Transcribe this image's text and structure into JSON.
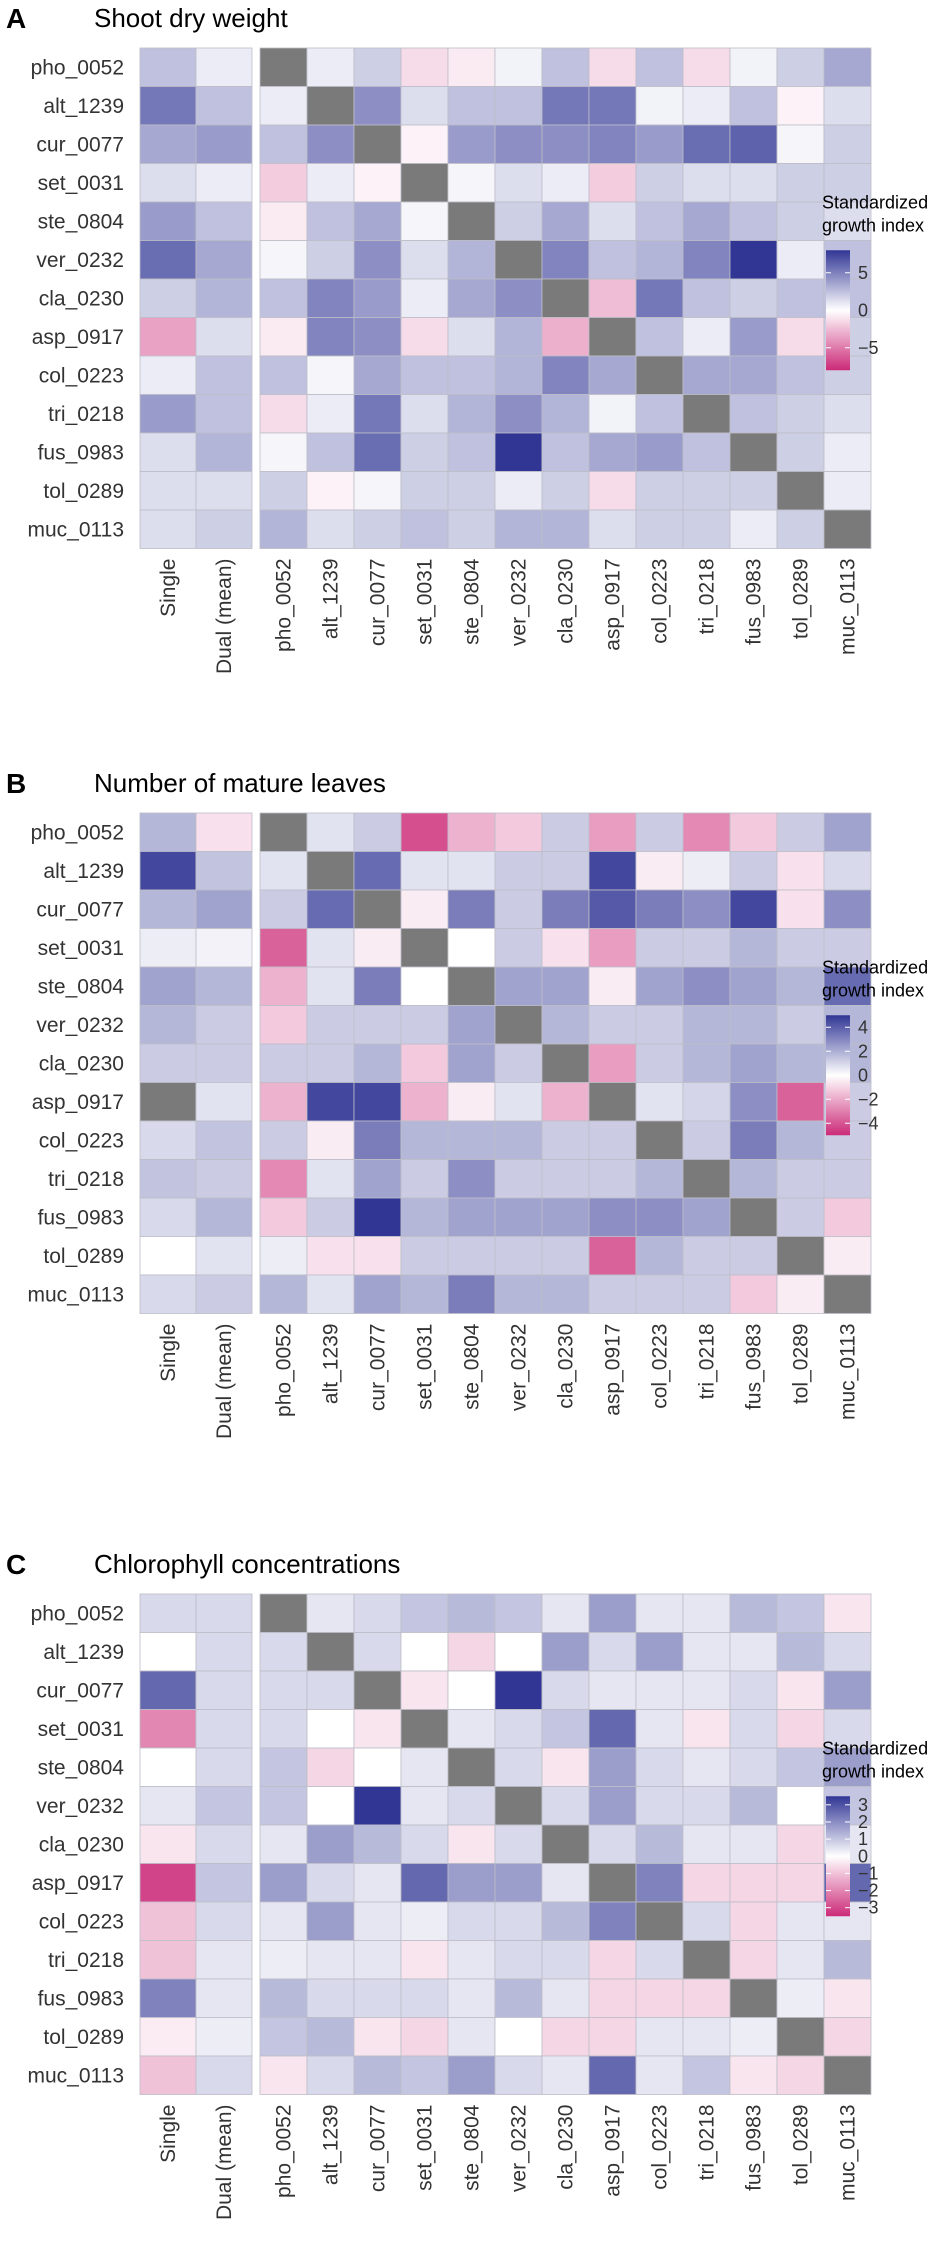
{
  "chart_data": [
    {
      "type": "heatmap",
      "panel": "A",
      "title": "Shoot dry weight",
      "legend": {
        "title_line1": "Standardized",
        "title_line2": "growth index",
        "ticks": [
          5,
          0,
          -5
        ],
        "tick_labels": [
          "5",
          "0",
          "−5"
        ],
        "range": [
          -8,
          8
        ]
      },
      "rows": [
        "pho_0052",
        "alt_1239",
        "cur_0077",
        "set_0031",
        "ste_0804",
        "ver_0232",
        "cla_0230",
        "asp_0917",
        "col_0223",
        "tri_0218",
        "fus_0983",
        "tol_0289",
        "muc_0113"
      ],
      "summary_columns": [
        "Single",
        "Dual (mean)"
      ],
      "pair_columns": [
        "pho_0052",
        "alt_1239",
        "cur_0077",
        "set_0031",
        "ste_0804",
        "ver_0232",
        "cla_0230",
        "asp_0917",
        "col_0223",
        "tri_0218",
        "fus_0983",
        "tol_0289",
        "muc_0113"
      ],
      "summary_values": [
        [
          2,
          0.5
        ],
        [
          5,
          2
        ],
        [
          3,
          3.5
        ],
        [
          1,
          0.5
        ],
        [
          3.5,
          2
        ],
        [
          5.5,
          3
        ],
        [
          1.5,
          2.5
        ],
        [
          -3,
          1
        ],
        [
          0.5,
          2
        ],
        [
          3.5,
          2
        ],
        [
          1,
          2.5
        ],
        [
          1,
          1
        ],
        [
          1,
          1.5
        ]
      ],
      "pair_values": [
        [
          null,
          0.5,
          1.5,
          -1,
          -0.5,
          0.3,
          2,
          -1,
          2,
          -1,
          0.3,
          1.5,
          3
        ],
        [
          0.5,
          null,
          4,
          1,
          2,
          2,
          5,
          5,
          0.3,
          0.5,
          2,
          -0.3,
          1
        ],
        [
          2,
          4,
          null,
          -0.3,
          3.5,
          4,
          4,
          4.5,
          3.5,
          5.5,
          6,
          0.2,
          1.5
        ],
        [
          -1.5,
          0.5,
          -0.3,
          null,
          0.2,
          1,
          0.5,
          -1.5,
          1.5,
          1,
          1,
          1.5,
          1.5
        ],
        [
          -0.5,
          2,
          3,
          0.2,
          null,
          1.5,
          3,
          1,
          2,
          3,
          2,
          1.5,
          1
        ],
        [
          0.2,
          1.5,
          4,
          1,
          2.5,
          null,
          4.5,
          2,
          2.5,
          4.5,
          8,
          0.5,
          2
        ],
        [
          2,
          4.5,
          3.5,
          0.5,
          3,
          4,
          null,
          -2,
          5,
          2,
          1.5,
          2,
          2
        ],
        [
          -0.5,
          4.5,
          4,
          -1,
          1,
          2.5,
          -2.5,
          null,
          2,
          0.5,
          3.5,
          -1,
          1.5
        ],
        [
          2,
          0.2,
          3,
          2,
          2,
          2.5,
          4.5,
          3,
          null,
          3,
          3,
          2,
          1.5
        ],
        [
          -1,
          0.5,
          5,
          1,
          2.5,
          4,
          2.5,
          0.3,
          2,
          null,
          2,
          1.5,
          1
        ],
        [
          0.2,
          2,
          5.5,
          1.5,
          2,
          8,
          2,
          3,
          3.5,
          2,
          null,
          1.5,
          0.5
        ],
        [
          1.5,
          -0.3,
          0.2,
          1.5,
          1.5,
          0.5,
          1.5,
          -1,
          1.5,
          1.5,
          1.5,
          null,
          0.5
        ],
        [
          2.5,
          1,
          1.5,
          2,
          1.5,
          2.5,
          2.5,
          1,
          1.5,
          1.5,
          0.5,
          1.5,
          null
        ]
      ],
      "xlabel": "",
      "ylabel": ""
    },
    {
      "type": "heatmap",
      "panel": "B",
      "title": "Number of mature leaves",
      "legend": {
        "title_line1": "Standardized",
        "title_line2": "growth index",
        "ticks": [
          4,
          2,
          0,
          -2,
          -4
        ],
        "tick_labels": [
          "4",
          "2",
          "0",
          "−2",
          "−4"
        ],
        "range": [
          -5,
          5
        ]
      },
      "rows": [
        "pho_0052",
        "alt_1239",
        "cur_0077",
        "set_0031",
        "ste_0804",
        "ver_0232",
        "cla_0230",
        "asp_0917",
        "col_0223",
        "tri_0218",
        "fus_0983",
        "tol_0289",
        "muc_0113"
      ],
      "summary_columns": [
        "Single",
        "Dual (mean)"
      ],
      "pair_columns": [
        "pho_0052",
        "alt_1239",
        "cur_0077",
        "set_0031",
        "ste_0804",
        "ver_0232",
        "cla_0230",
        "asp_0917",
        "col_0223",
        "tri_0218",
        "fus_0983",
        "tol_0289",
        "muc_0113"
      ],
      "summary_values": [
        [
          1.5,
          -0.5
        ],
        [
          4.5,
          1.2
        ],
        [
          1.5,
          2
        ],
        [
          0.3,
          0.2
        ],
        [
          2,
          1.5
        ],
        [
          1.5,
          1
        ],
        [
          1,
          1
        ],
        [
          null,
          0.5
        ],
        [
          0.7,
          1.2
        ],
        [
          1.2,
          1
        ],
        [
          0.7,
          1.5
        ],
        [
          0,
          0.5
        ],
        [
          0.7,
          1
        ]
      ],
      "pair_values": [
        [
          null,
          0.5,
          1,
          -4,
          -1.5,
          -1,
          1,
          -2,
          1,
          -2.5,
          -1,
          1,
          2
        ],
        [
          0.5,
          null,
          3.5,
          0.5,
          0.5,
          1,
          1,
          4.5,
          -0.3,
          0.3,
          1,
          -0.5,
          0.7
        ],
        [
          1,
          3.5,
          null,
          -0.3,
          3,
          1,
          3,
          4,
          3,
          2.5,
          4.5,
          -0.5,
          2.5
        ],
        [
          -3.5,
          0.5,
          -0.3,
          null,
          0,
          1,
          -0.5,
          -2,
          1,
          1,
          1.5,
          1,
          1
        ],
        [
          -1.5,
          0.5,
          3,
          0,
          null,
          2,
          2,
          -0.3,
          2,
          2.5,
          2,
          1.5,
          3.5
        ],
        [
          -1,
          1,
          1,
          1,
          2,
          null,
          1.5,
          1,
          1,
          1.5,
          1.5,
          1,
          1.5
        ],
        [
          1,
          1,
          1.5,
          -1,
          2,
          1,
          null,
          -2,
          1,
          1.5,
          2,
          1.5,
          1.5
        ],
        [
          -1.5,
          4.5,
          4.5,
          -1.5,
          -0.3,
          0.5,
          -1.5,
          null,
          0.5,
          0.8,
          2.5,
          -3.5,
          1
        ],
        [
          1,
          -0.3,
          3,
          1.5,
          1.5,
          1.5,
          1,
          1,
          null,
          1,
          3,
          1.5,
          1
        ],
        [
          -2.5,
          0.5,
          2,
          1,
          2.5,
          1,
          1,
          1,
          1.5,
          null,
          1.5,
          1,
          1
        ],
        [
          -1,
          1,
          5,
          1.5,
          2,
          2,
          2,
          2.5,
          2.5,
          2,
          null,
          1,
          -1
        ],
        [
          0.3,
          -0.5,
          -0.5,
          1,
          1,
          1,
          1,
          -3.5,
          1.5,
          1,
          1,
          null,
          -0.3
        ],
        [
          1.5,
          0.5,
          2,
          1.5,
          3,
          1.5,
          1.5,
          1,
          1,
          1,
          -1,
          -0.3,
          null
        ]
      ],
      "xlabel": "",
      "ylabel": ""
    },
    {
      "type": "heatmap",
      "panel": "C",
      "title": "Chlorophyll concentrations",
      "legend": {
        "title_line1": "Standardized",
        "title_line2": "growth index",
        "ticks": [
          3,
          2,
          1,
          0,
          -1,
          -2,
          -3
        ],
        "tick_labels": [
          "3",
          "2",
          "1",
          "0",
          "−1",
          "−2",
          "−3"
        ],
        "range": [
          -3.5,
          3.5
        ]
      },
      "rows": [
        "pho_0052",
        "alt_1239",
        "cur_0077",
        "set_0031",
        "ste_0804",
        "ver_0232",
        "cla_0230",
        "asp_0917",
        "col_0223",
        "tri_0218",
        "fus_0983",
        "tol_0289",
        "muc_0113"
      ],
      "summary_columns": [
        "Single",
        "Dual (mean)"
      ],
      "pair_columns": [
        "pho_0052",
        "alt_1239",
        "cur_0077",
        "set_0031",
        "ste_0804",
        "ver_0232",
        "cla_0230",
        "asp_0917",
        "col_0223",
        "tri_0218",
        "fus_0983",
        "tol_0289",
        "muc_0113"
      ],
      "summary_values": [
        [
          0.5,
          0.5
        ],
        [
          0,
          0.5
        ],
        [
          2.5,
          0.5
        ],
        [
          -1.8,
          0.5
        ],
        [
          0,
          0.5
        ],
        [
          0.3,
          0.8
        ],
        [
          -0.3,
          0.5
        ],
        [
          -3,
          0.8
        ],
        [
          -0.8,
          0.5
        ],
        [
          -0.8,
          0.3
        ],
        [
          2,
          0.3
        ],
        [
          -0.2,
          0.2
        ],
        [
          -0.8,
          0.5
        ]
      ],
      "pair_values": [
        [
          null,
          0.3,
          0.5,
          0.8,
          1,
          0.8,
          0.3,
          1.5,
          0.3,
          0.3,
          1,
          0.8,
          -0.3
        ],
        [
          0.5,
          null,
          0.5,
          0,
          -0.5,
          0,
          1.5,
          0.5,
          1.5,
          0.3,
          0.3,
          1,
          0.5
        ],
        [
          0.5,
          0.5,
          null,
          -0.3,
          0,
          3.5,
          0.5,
          0.3,
          0.3,
          0.3,
          0.5,
          -0.3,
          1.5
        ],
        [
          0.5,
          0,
          -0.3,
          null,
          0.3,
          0.5,
          0.8,
          2.5,
          0.3,
          -0.3,
          0.5,
          -0.5,
          0.5
        ],
        [
          0.8,
          -0.5,
          0,
          0.3,
          null,
          0.5,
          -0.3,
          1.5,
          0.5,
          0.3,
          0.5,
          0.8,
          1.5
        ],
        [
          0.8,
          0,
          3.5,
          0.3,
          0.5,
          null,
          0.5,
          1.5,
          0.5,
          0.5,
          1,
          0,
          0.8
        ],
        [
          0.3,
          1.5,
          1,
          0.5,
          -0.3,
          0.5,
          null,
          0.5,
          1,
          0.3,
          0.3,
          -0.5,
          0.3
        ],
        [
          1.5,
          0.5,
          0.3,
          2.5,
          1.5,
          1.5,
          0.3,
          null,
          2,
          -0.5,
          -0.5,
          -0.5,
          2.5
        ],
        [
          0.3,
          1.5,
          0.3,
          0.2,
          0.5,
          0.5,
          1,
          2,
          null,
          0.5,
          -0.5,
          0.3,
          0.3
        ],
        [
          0.2,
          0.3,
          0.3,
          -0.3,
          0.3,
          0.5,
          0.5,
          -0.5,
          0.5,
          null,
          -0.5,
          0.3,
          1
        ],
        [
          1,
          0.5,
          0.5,
          0.5,
          0.3,
          1,
          0.3,
          -0.5,
          -0.5,
          -0.5,
          null,
          0.2,
          -0.3
        ],
        [
          0.8,
          1,
          -0.3,
          -0.5,
          0.3,
          0,
          -0.5,
          -0.5,
          0.3,
          0.3,
          0.2,
          null,
          -0.5
        ],
        [
          -0.3,
          0.5,
          1,
          0.8,
          1.5,
          0.5,
          0.3,
          2.5,
          0.3,
          0.8,
          -0.3,
          -0.5,
          null
        ]
      ],
      "xlabel": "",
      "ylabel": ""
    }
  ]
}
